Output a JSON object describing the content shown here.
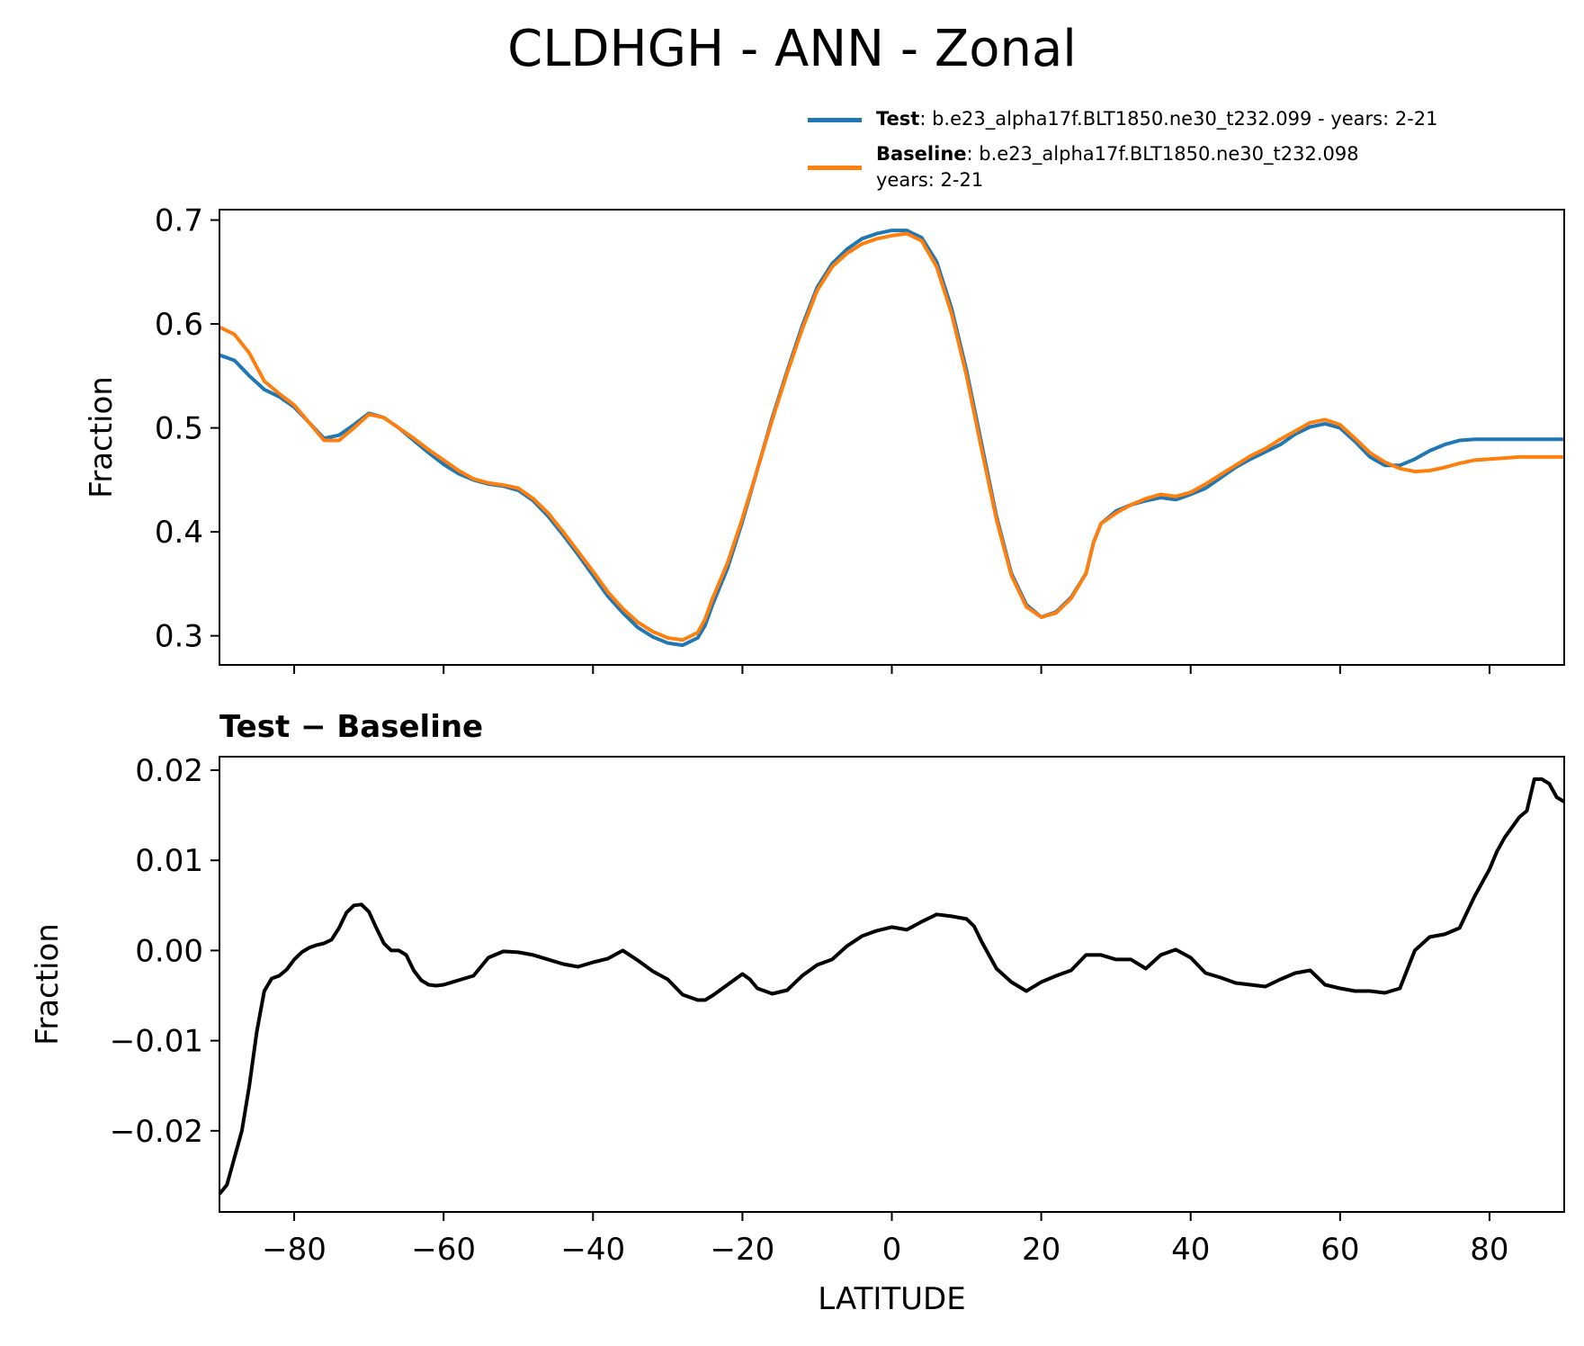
{
  "figure": {
    "title": "CLDHGH - ANN - Zonal",
    "legend": [
      {
        "name": "Test",
        "label": ": b.e23_alpha17f.BLT1850.ne30_t232.099 - years: 2-21",
        "color": "#1f77b4"
      },
      {
        "name": "Baseline",
        "label": ": b.e23_alpha17f.BLT1850.ne30_t232.098",
        "label_line2": "years: 2-21",
        "color": "#ff7f0e"
      }
    ]
  },
  "chart_data": [
    {
      "type": "line",
      "title": "",
      "xlabel": "",
      "ylabel": "Fraction",
      "xlim": [
        -90,
        90
      ],
      "ylim": [
        0.272,
        0.71
      ],
      "yticks": [
        "0.3",
        "0.4",
        "0.5",
        "0.6",
        "0.7"
      ],
      "ytick_values": [
        0.3,
        0.4,
        0.5,
        0.6,
        0.7
      ],
      "xtick_values": [
        -80,
        -60,
        -40,
        -20,
        0,
        20,
        40,
        60,
        80
      ],
      "series": [
        {
          "name": "Test",
          "color": "#1f77b4",
          "x": [
            -90,
            -88,
            -86,
            -84,
            -82,
            -80,
            -78,
            -76,
            -74,
            -72,
            -70,
            -68,
            -66,
            -64,
            -62,
            -60,
            -58,
            -56,
            -54,
            -52,
            -50,
            -48,
            -46,
            -44,
            -42,
            -40,
            -38,
            -36,
            -34,
            -32,
            -30,
            -28,
            -26,
            -25,
            -24,
            -22,
            -20,
            -18,
            -16,
            -14,
            -12,
            -10,
            -8,
            -6,
            -4,
            -2,
            0,
            2,
            4,
            6,
            8,
            10,
            12,
            14,
            16,
            18,
            20,
            22,
            24,
            26,
            27,
            28,
            30,
            32,
            34,
            36,
            38,
            40,
            42,
            44,
            46,
            48,
            50,
            52,
            54,
            56,
            58,
            60,
            62,
            64,
            66,
            68,
            70,
            72,
            74,
            76,
            78,
            80,
            82,
            84,
            86,
            88,
            90
          ],
          "values": [
            0.57,
            0.565,
            0.55,
            0.537,
            0.53,
            0.52,
            0.505,
            0.49,
            0.493,
            0.503,
            0.514,
            0.51,
            0.5,
            0.488,
            0.476,
            0.465,
            0.456,
            0.45,
            0.446,
            0.444,
            0.44,
            0.43,
            0.415,
            0.397,
            0.378,
            0.358,
            0.338,
            0.322,
            0.308,
            0.299,
            0.293,
            0.291,
            0.298,
            0.31,
            0.33,
            0.365,
            0.41,
            0.46,
            0.51,
            0.555,
            0.598,
            0.635,
            0.658,
            0.672,
            0.682,
            0.687,
            0.69,
            0.69,
            0.683,
            0.66,
            0.615,
            0.555,
            0.485,
            0.415,
            0.36,
            0.33,
            0.318,
            0.323,
            0.337,
            0.36,
            0.39,
            0.408,
            0.42,
            0.426,
            0.43,
            0.433,
            0.431,
            0.436,
            0.442,
            0.452,
            0.462,
            0.47,
            0.477,
            0.484,
            0.494,
            0.501,
            0.504,
            0.5,
            0.487,
            0.472,
            0.464,
            0.464,
            0.47,
            0.478,
            0.484,
            0.488,
            0.489,
            0.489,
            0.489,
            0.489,
            0.489,
            0.489,
            0.489
          ]
        },
        {
          "name": "Baseline",
          "color": "#ff7f0e",
          "x": [
            -90,
            -88,
            -86,
            -84,
            -82,
            -80,
            -78,
            -76,
            -74,
            -72,
            -70,
            -68,
            -66,
            -64,
            -62,
            -60,
            -58,
            -56,
            -54,
            -52,
            -50,
            -48,
            -46,
            -44,
            -42,
            -40,
            -38,
            -36,
            -34,
            -32,
            -30,
            -28,
            -26,
            -25,
            -24,
            -22,
            -20,
            -18,
            -16,
            -14,
            -12,
            -10,
            -8,
            -6,
            -4,
            -2,
            0,
            2,
            4,
            6,
            8,
            10,
            12,
            14,
            16,
            18,
            20,
            22,
            24,
            26,
            27,
            28,
            30,
            32,
            34,
            36,
            38,
            40,
            42,
            44,
            46,
            48,
            50,
            52,
            54,
            56,
            58,
            60,
            62,
            64,
            66,
            68,
            70,
            72,
            74,
            76,
            78,
            80,
            82,
            84,
            86,
            88,
            90
          ],
          "values": [
            0.597,
            0.59,
            0.572,
            0.545,
            0.533,
            0.522,
            0.505,
            0.488,
            0.488,
            0.5,
            0.513,
            0.51,
            0.5,
            0.49,
            0.479,
            0.469,
            0.459,
            0.451,
            0.447,
            0.445,
            0.442,
            0.432,
            0.418,
            0.4,
            0.381,
            0.362,
            0.342,
            0.326,
            0.313,
            0.304,
            0.298,
            0.296,
            0.303,
            0.316,
            0.336,
            0.37,
            0.413,
            0.46,
            0.508,
            0.553,
            0.595,
            0.632,
            0.655,
            0.668,
            0.677,
            0.682,
            0.685,
            0.687,
            0.68,
            0.655,
            0.61,
            0.55,
            0.48,
            0.412,
            0.358,
            0.328,
            0.318,
            0.322,
            0.336,
            0.36,
            0.39,
            0.408,
            0.418,
            0.426,
            0.432,
            0.436,
            0.434,
            0.438,
            0.446,
            0.455,
            0.464,
            0.473,
            0.48,
            0.489,
            0.497,
            0.505,
            0.508,
            0.503,
            0.49,
            0.476,
            0.467,
            0.461,
            0.458,
            0.459,
            0.462,
            0.466,
            0.469,
            0.47,
            0.471,
            0.472,
            0.472,
            0.472,
            0.472
          ]
        }
      ]
    },
    {
      "type": "line",
      "title": "Test − Baseline",
      "xlabel": "LATITUDE",
      "ylabel": "Fraction",
      "xlim": [
        -90,
        90
      ],
      "ylim": [
        -0.029,
        0.0215
      ],
      "yticks": [
        "−0.02",
        "−0.01",
        "0.00",
        "0.01",
        "0.02"
      ],
      "ytick_values": [
        -0.02,
        -0.01,
        0.0,
        0.01,
        0.02
      ],
      "xticks": [
        "−80",
        "−60",
        "−40",
        "−20",
        "0",
        "20",
        "40",
        "60",
        "80"
      ],
      "xtick_values": [
        -80,
        -60,
        -40,
        -20,
        0,
        20,
        40,
        60,
        80
      ],
      "series": [
        {
          "name": "Test − Baseline",
          "color": "#000000",
          "x": [
            -90,
            -89,
            -88,
            -87,
            -86,
            -85,
            -84,
            -83,
            -82,
            -81,
            -80,
            -79,
            -78,
            -77,
            -76,
            -75,
            -74,
            -73,
            -72,
            -71,
            -70,
            -69,
            -68,
            -67,
            -66,
            -65,
            -64,
            -63,
            -62,
            -61,
            -60,
            -58,
            -56,
            -54,
            -52,
            -50,
            -48,
            -46,
            -44,
            -42,
            -40,
            -38,
            -36,
            -34,
            -32,
            -30,
            -28,
            -26,
            -25,
            -24,
            -22,
            -20,
            -19,
            -18,
            -16,
            -14,
            -12,
            -10,
            -8,
            -6,
            -4,
            -2,
            0,
            2,
            4,
            6,
            8,
            10,
            11,
            12,
            14,
            16,
            18,
            20,
            22,
            24,
            26,
            28,
            30,
            32,
            34,
            36,
            38,
            40,
            42,
            44,
            46,
            48,
            50,
            52,
            54,
            56,
            58,
            60,
            62,
            64,
            66,
            68,
            70,
            72,
            74,
            76,
            78,
            80,
            81,
            82,
            84,
            85,
            86,
            87,
            88,
            89,
            90
          ],
          "values": [
            -0.027,
            -0.026,
            -0.023,
            -0.02,
            -0.015,
            -0.009,
            -0.0045,
            -0.0031,
            -0.0028,
            -0.0021,
            -0.001,
            -0.0002,
            0.0003,
            0.0006,
            0.0008,
            0.0012,
            0.0025,
            0.0042,
            0.005,
            0.0051,
            0.0043,
            0.0025,
            0.0008,
            0.0,
            0.0,
            -0.0005,
            -0.0022,
            -0.0033,
            -0.0038,
            -0.0039,
            -0.0038,
            -0.0033,
            -0.0028,
            -0.0008,
            -0.0001,
            -0.0002,
            -0.0005,
            -0.001,
            -0.0015,
            -0.0018,
            -0.0013,
            -0.0009,
            0.0,
            -0.0011,
            -0.0023,
            -0.0032,
            -0.0049,
            -0.0055,
            -0.0055,
            -0.005,
            -0.0038,
            -0.0026,
            -0.0032,
            -0.0042,
            -0.0048,
            -0.0044,
            -0.0028,
            -0.0016,
            -0.001,
            0.0005,
            0.0016,
            0.0022,
            0.0026,
            0.0023,
            0.0032,
            0.004,
            0.0038,
            0.0035,
            0.0027,
            0.001,
            -0.002,
            -0.0035,
            -0.0045,
            -0.0035,
            -0.0028,
            -0.0022,
            -0.0005,
            -0.0005,
            -0.001,
            -0.001,
            -0.002,
            -0.0005,
            0.0001,
            -0.0008,
            -0.0025,
            -0.003,
            -0.0036,
            -0.0038,
            -0.004,
            -0.0032,
            -0.0025,
            -0.0022,
            -0.0038,
            -0.0042,
            -0.0045,
            -0.0045,
            -0.0047,
            -0.0042,
            0.0,
            0.0015,
            0.0018,
            0.0025,
            0.006,
            0.009,
            0.011,
            0.0125,
            0.0148,
            0.0155,
            0.019,
            0.019,
            0.0185,
            0.017,
            0.0165
          ]
        }
      ]
    }
  ]
}
